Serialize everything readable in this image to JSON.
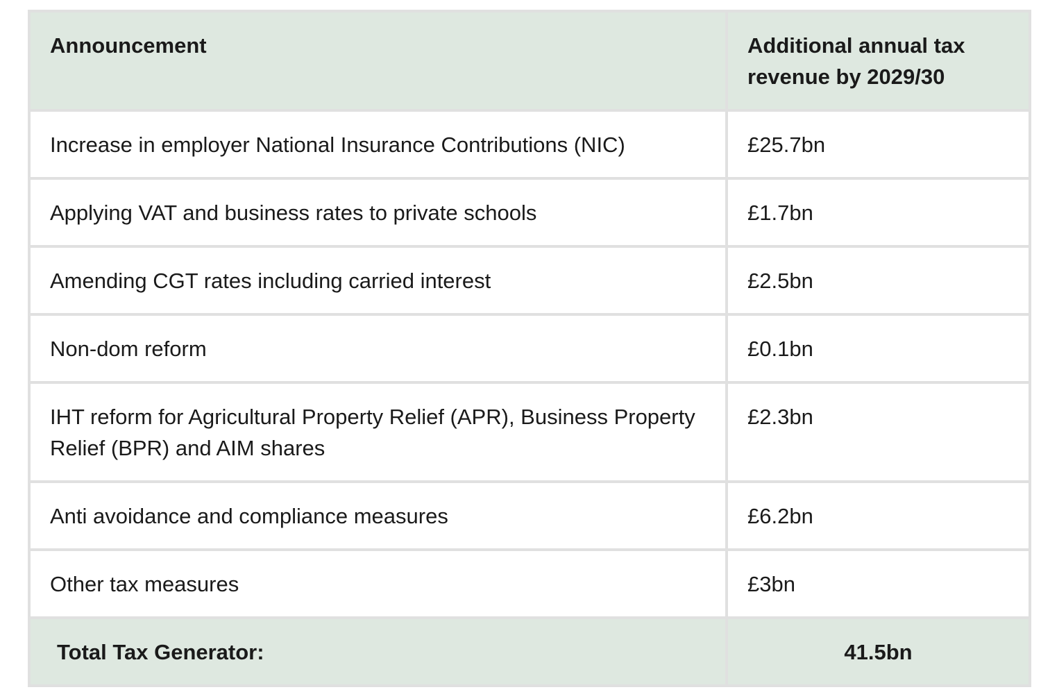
{
  "colors": {
    "header_bg": "#dee8e0",
    "total_bg": "#dee8e0",
    "row_bg": "#ffffff",
    "border": "#e0e0e0",
    "text": "#1a1a1a"
  },
  "table": {
    "columns": [
      {
        "label": "Announcement"
      },
      {
        "label": "Additional annual tax revenue by 2029/30"
      }
    ],
    "rows": [
      {
        "announcement": "Increase in employer National Insurance Contributions (NIC)",
        "revenue": "£25.7bn"
      },
      {
        "announcement": "Applying VAT and business rates to private schools",
        "revenue": "£1.7bn"
      },
      {
        "announcement": "Amending CGT rates including carried interest",
        "revenue": "£2.5bn"
      },
      {
        "announcement": "Non-dom reform",
        "revenue": "£0.1bn"
      },
      {
        "announcement": "IHT reform for Agricultural Property Relief (APR), Business Property Relief (BPR) and AIM shares",
        "revenue": "£2.3bn"
      },
      {
        "announcement": "Anti avoidance and compliance measures",
        "revenue": "£6.2bn"
      },
      {
        "announcement": "Other tax measures",
        "revenue": "£3bn"
      }
    ],
    "total_row": {
      "label": "Total Tax Generator:",
      "value": "41.5bn"
    }
  },
  "chart_data": {
    "type": "table",
    "columns": [
      "Announcement",
      "Additional annual tax revenue by 2029/30"
    ],
    "rows": [
      [
        "Increase in employer National Insurance Contributions (NIC)",
        "£25.7bn"
      ],
      [
        "Applying VAT and business rates to private schools",
        "£1.7bn"
      ],
      [
        "Amending CGT rates including carried interest",
        "£2.5bn"
      ],
      [
        "Non-dom reform",
        "£0.1bn"
      ],
      [
        "IHT reform for Agricultural Property Relief (APR), Business Property Relief (BPR) and AIM shares",
        "£2.3bn"
      ],
      [
        "Anti avoidance and compliance measures",
        "£6.2bn"
      ],
      [
        "Other tax measures",
        "£3bn"
      ]
    ],
    "values_bn_gbp": [
      25.7,
      1.7,
      2.5,
      0.1,
      2.3,
      6.2,
      3
    ],
    "total": {
      "label": "Total Tax Generator:",
      "value": "41.5bn"
    },
    "layout": {
      "header_fill": "#dee8e0",
      "total_row_fill": "#dee8e0",
      "grid": "on"
    }
  }
}
